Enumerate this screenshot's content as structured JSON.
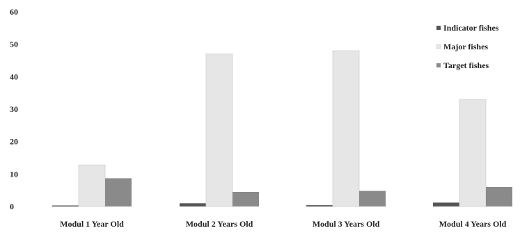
{
  "chart_data": {
    "type": "bar",
    "title": "",
    "xlabel": "",
    "ylabel": "",
    "ylim": [
      0,
      60
    ],
    "yticks": [
      0,
      10,
      20,
      30,
      40,
      50,
      60
    ],
    "grid": false,
    "legend_position": "top-right",
    "categories": [
      "Modul 1 Year Old",
      "Modul 2 Years Old",
      "Modul 3 Years Old",
      "Modul 4 Years Old"
    ],
    "series": [
      {
        "name": "Indicator fishes",
        "color": "#555555",
        "values": [
          0.3,
          1.0,
          0.4,
          1.2
        ]
      },
      {
        "name": "Major fishes",
        "color": "#e6e6e6",
        "values": [
          12.8,
          47.0,
          48.0,
          33.0
        ]
      },
      {
        "name": "Target fishes",
        "color": "#8a8a8a",
        "values": [
          8.7,
          4.5,
          4.8,
          6.0
        ]
      }
    ]
  }
}
